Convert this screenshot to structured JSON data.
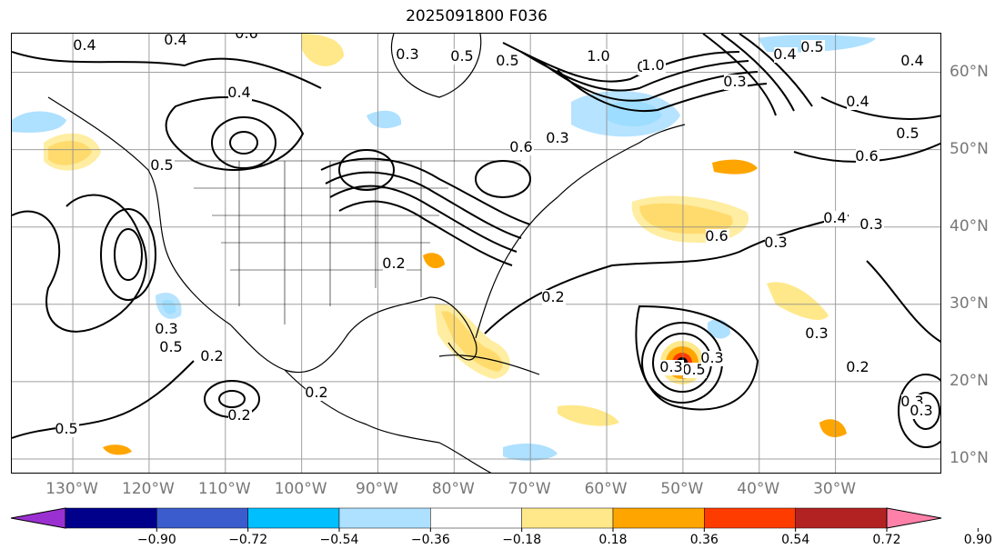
{
  "title": "2025091800 F036",
  "map": {
    "projection": "plate carree",
    "lon_range": [
      -138,
      -16
    ],
    "lat_range": [
      8,
      65
    ],
    "gridlines": true,
    "lon_labels": [
      "130°W",
      "120°W",
      "110°W",
      "100°W",
      "90°W",
      "80°W",
      "70°W",
      "60°W",
      "50°W",
      "40°W",
      "30°W"
    ],
    "lat_labels": [
      "60°N",
      "50°N",
      "40°N",
      "30°N",
      "20°N",
      "10°N"
    ],
    "contour_labels": [
      "0.4",
      "0.4",
      "0.6",
      "0.3",
      "0.5",
      "0.5",
      "1.0",
      "0.5",
      "0.4",
      "0.5",
      "0.3",
      "0.6",
      "1.0",
      "0.2",
      "0.5",
      "0.4",
      "0.4",
      "0.5",
      "0.6",
      "0.4",
      "0.3",
      "0.6",
      "0.3",
      "0.3",
      "0.2",
      "0.5",
      "0.2",
      "0.5",
      "0.2",
      "0.4",
      "0.5",
      "0.3",
      "0.3",
      "0.3",
      "0.3",
      "0.3",
      "0.2",
      "0.2",
      "0.3"
    ],
    "colors": {
      "coastline": "#000000",
      "grid": "#888888",
      "label": "#777777"
    }
  },
  "colorbar": {
    "ticks": [
      "−0.90",
      "−0.72",
      "−0.54",
      "−0.36",
      "−0.18",
      "0.18",
      "0.36",
      "0.54",
      "0.72",
      "0.90"
    ],
    "colors": [
      "#9b30d0",
      "#00008b",
      "#3a5ccc",
      "#00bfff",
      "#aee0ff",
      "#ffffff",
      "#ffe88a",
      "#ffa500",
      "#ff3c00",
      "#b22222",
      "#ff80a8"
    ],
    "extend": "both"
  }
}
